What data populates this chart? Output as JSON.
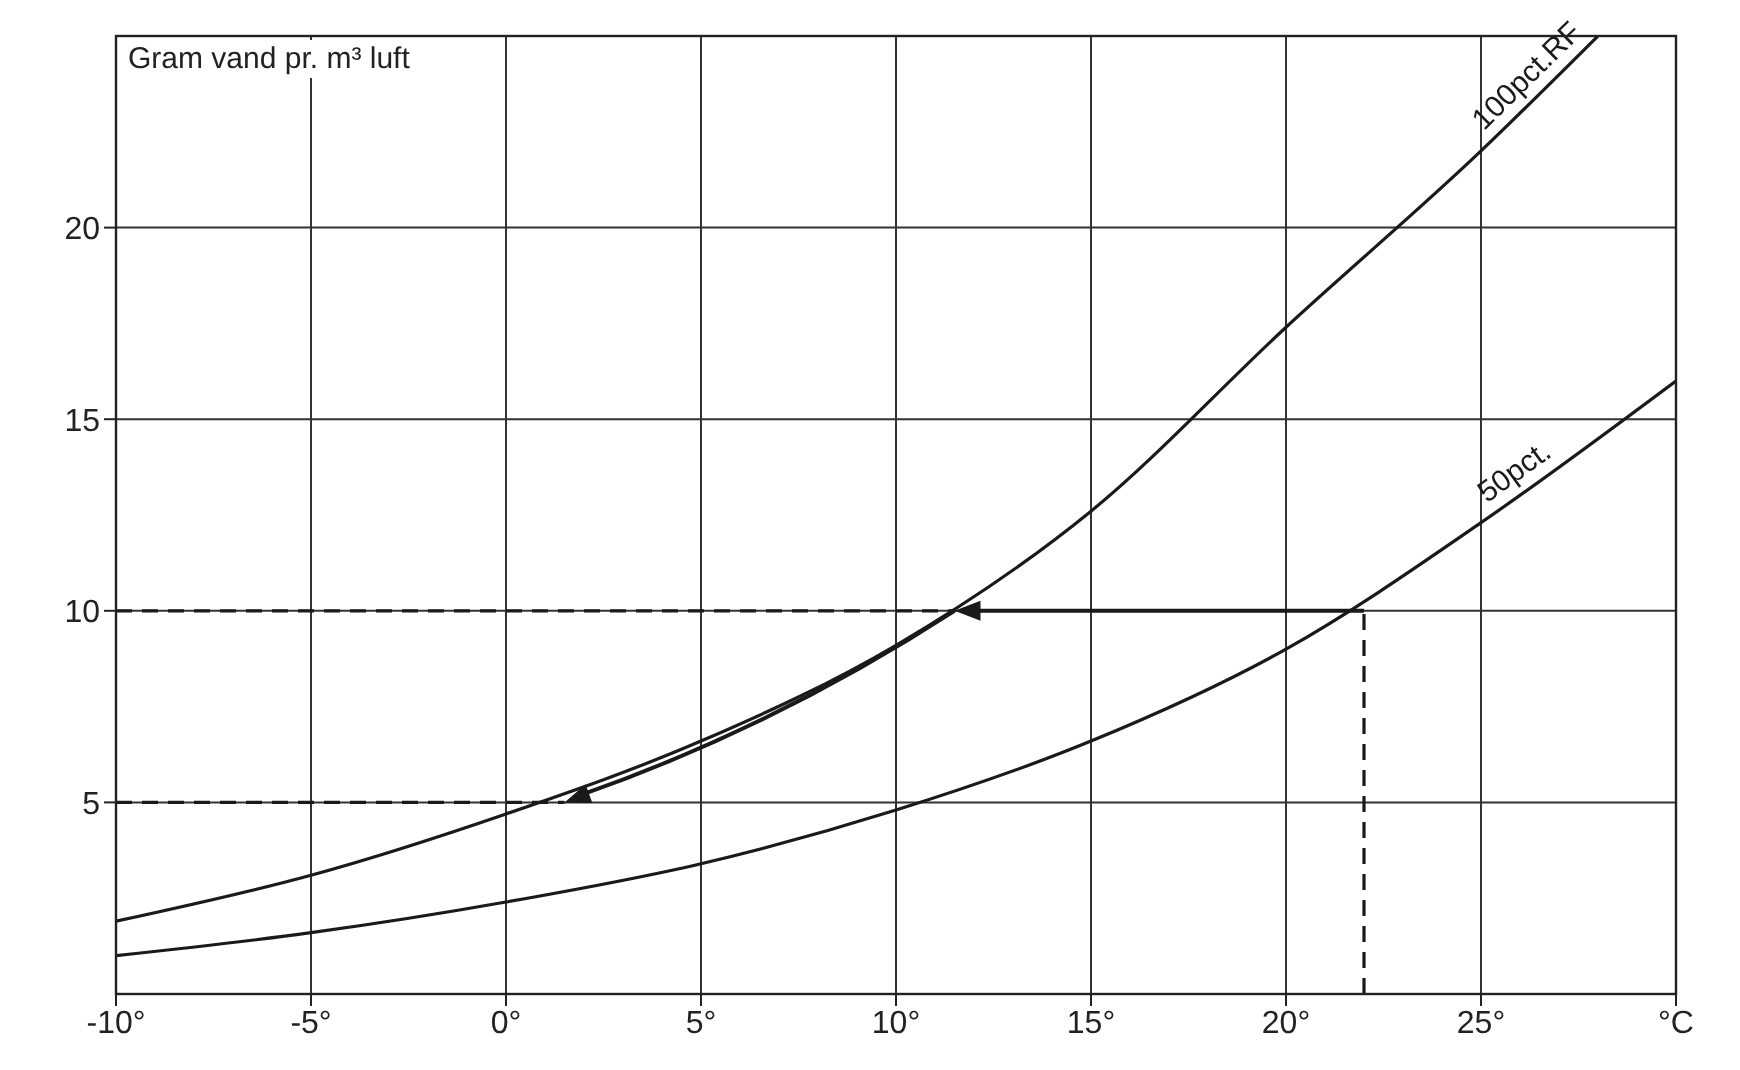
{
  "chart_data": {
    "type": "line",
    "ylabel": "Gram vand pr. m³ luft",
    "xlim": [
      -10,
      30
    ],
    "xticks": [
      {
        "value": -10,
        "label": "-10°"
      },
      {
        "value": -5,
        "label": "-5°"
      },
      {
        "value": 0,
        "label": "0°"
      },
      {
        "value": 5,
        "label": "5°"
      },
      {
        "value": 10,
        "label": "10°"
      },
      {
        "value": 15,
        "label": "15°"
      },
      {
        "value": 20,
        "label": "20°"
      },
      {
        "value": 25,
        "label": "25°"
      },
      {
        "value": 30,
        "label": "°C"
      }
    ],
    "ylim": [
      0,
      25
    ],
    "yticks": [
      5,
      10,
      15,
      20
    ],
    "grid": true,
    "line_style": "solid",
    "series": [
      {
        "name": "100pct.RF",
        "color": "#1a1a1a",
        "x": [
          -10,
          -5,
          0,
          5,
          10,
          15,
          20,
          25,
          28
        ],
        "values": [
          1.9,
          3.1,
          4.7,
          6.6,
          9.1,
          12.6,
          17.4,
          22,
          25
        ]
      },
      {
        "name": "50pct.",
        "color": "#1a1a1a",
        "x": [
          -10,
          -5,
          0,
          5,
          10,
          15,
          20,
          25,
          30
        ],
        "values": [
          1,
          1.6,
          2.4,
          3.4,
          4.8,
          6.6,
          9,
          12.3,
          16
        ]
      },
      {
        "color": "#1a1a1a",
        "line_style": "dashed",
        "x": [
          -10,
          11.5
        ],
        "values": [
          10,
          10
        ]
      },
      {
        "color": "#1a1a1a",
        "line_style": "dashed",
        "x": [
          22,
          22
        ],
        "values": [
          0,
          10
        ]
      },
      {
        "color": "#1a1a1a",
        "line_style": "dashed",
        "x": [
          -10,
          1.5
        ],
        "values": [
          5,
          5
        ]
      }
    ]
  }
}
